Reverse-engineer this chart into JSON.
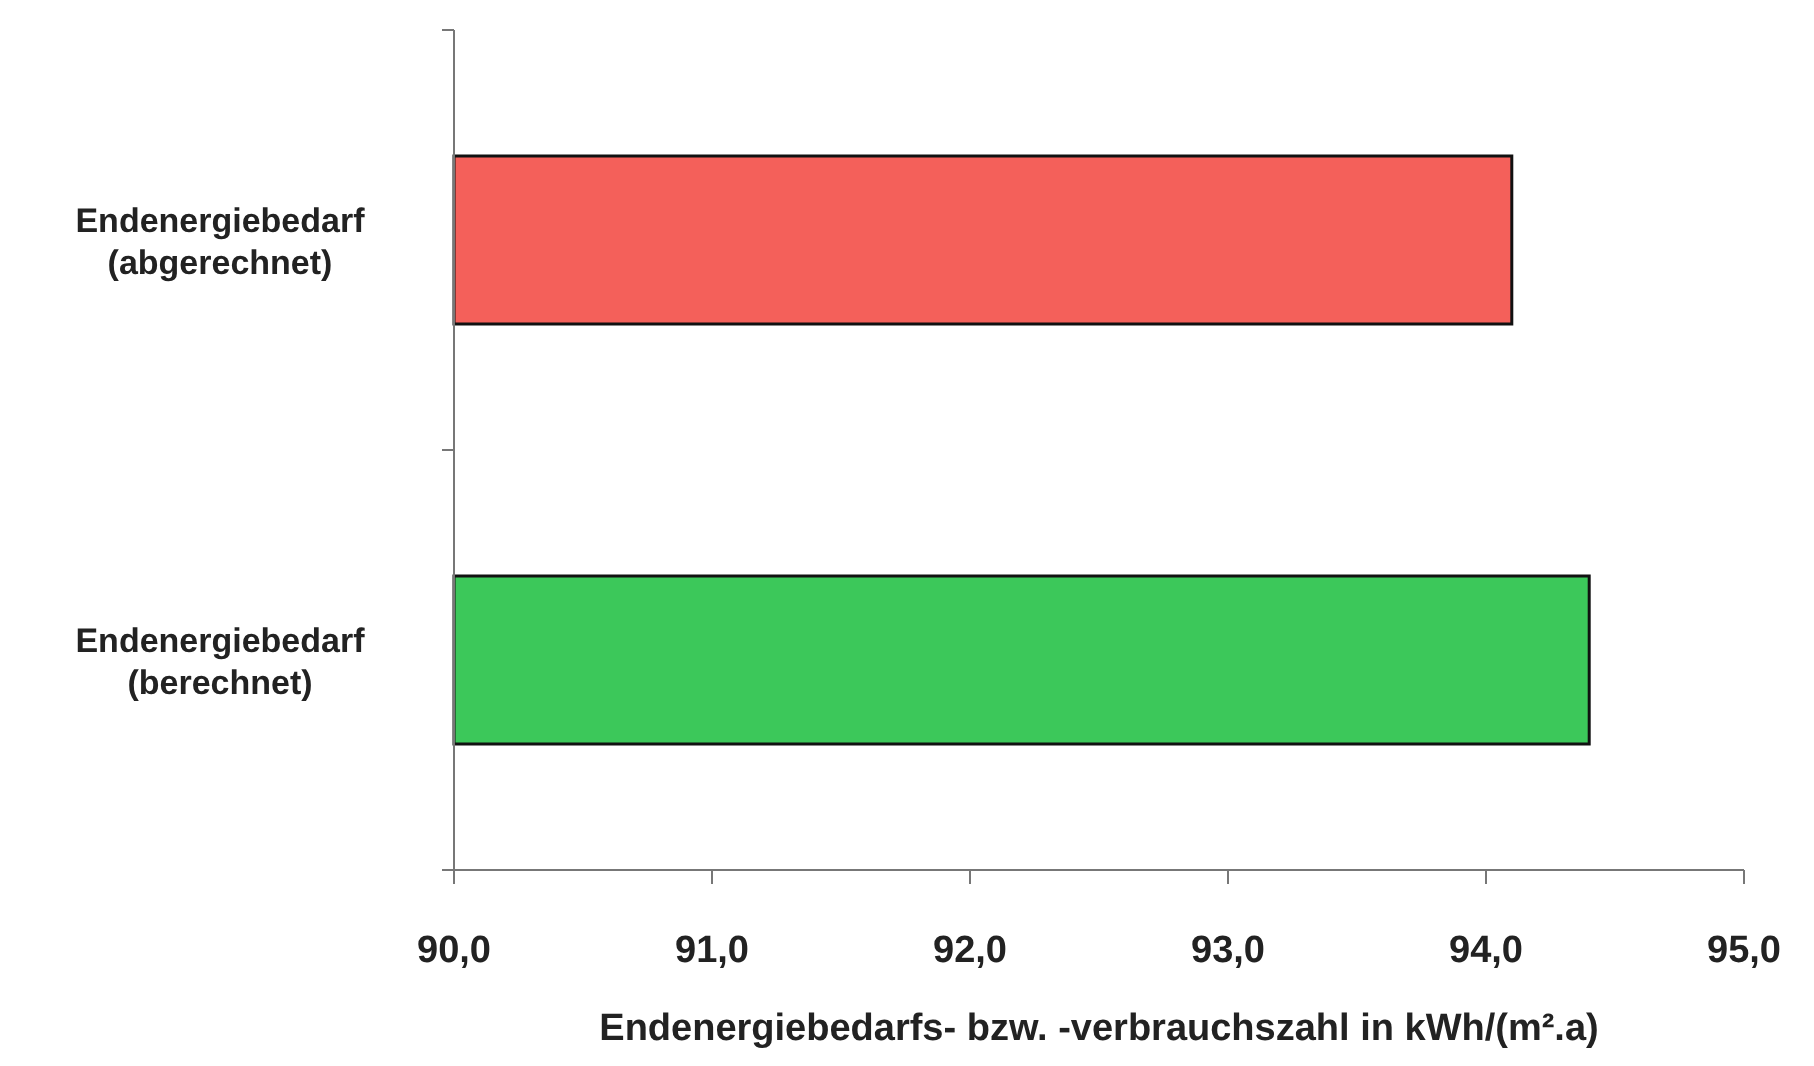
{
  "chart_data": {
    "type": "bar",
    "orientation": "horizontal",
    "xlabel": "Endenergiebedarfs- bzw. -verbrauchszahl in kWh/(m².a)",
    "categories": [
      "Endenergiebedarf\n(abgerechnet)",
      "Endenergiebedarf\n(berechnet)"
    ],
    "values": [
      94.1,
      94.4
    ],
    "colors": [
      "#f4605a",
      "#3cc85a"
    ],
    "xlim": [
      90,
      95
    ],
    "xticks": [
      {
        "value": 90,
        "label": "90,0"
      },
      {
        "value": 91,
        "label": "91,0"
      },
      {
        "value": 92,
        "label": "92,0"
      },
      {
        "value": 93,
        "label": "93,0"
      },
      {
        "value": 94,
        "label": "94,0"
      },
      {
        "value": 95,
        "label": "95,0"
      }
    ],
    "grid": false
  }
}
